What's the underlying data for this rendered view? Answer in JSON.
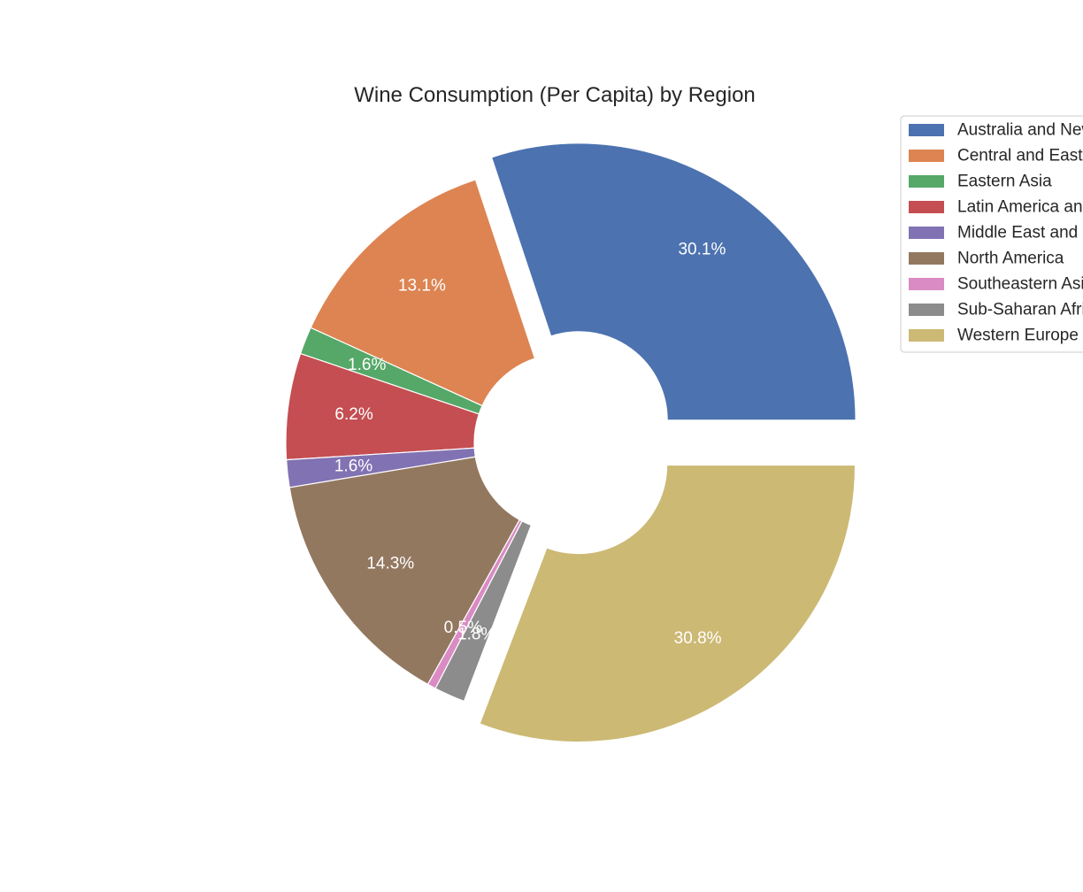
{
  "chart_data": {
    "type": "pie",
    "style": "donut",
    "title": "Wine Consumption (Per Capita) by Region",
    "categories": [
      "Australia and New Zealand",
      "Central and Eastern Europe",
      "Eastern Asia",
      "Latin America and Caribbean",
      "Middle East and Northern Africa",
      "North America",
      "Southeastern Asia",
      "Sub-Saharan Africa",
      "Western Europe"
    ],
    "values": [
      30.1,
      13.1,
      1.6,
      6.2,
      1.6,
      14.3,
      0.5,
      1.8,
      30.8
    ],
    "value_labels": [
      "30.1%",
      "13.1%",
      "1.6%",
      "6.2%",
      "1.6%",
      "14.3%",
      "0.5%",
      "1.8%",
      "30.8%"
    ],
    "colors": [
      "#4c72b0",
      "#dd8452",
      "#55a868",
      "#c44e52",
      "#8172b3",
      "#937860",
      "#da8bc3",
      "#8c8c8c",
      "#ccb974"
    ],
    "exploded": [
      true,
      false,
      false,
      false,
      false,
      false,
      false,
      false,
      true
    ],
    "start_angle_deg": 0,
    "direction": "counterclockwise",
    "legend_position": "right"
  }
}
